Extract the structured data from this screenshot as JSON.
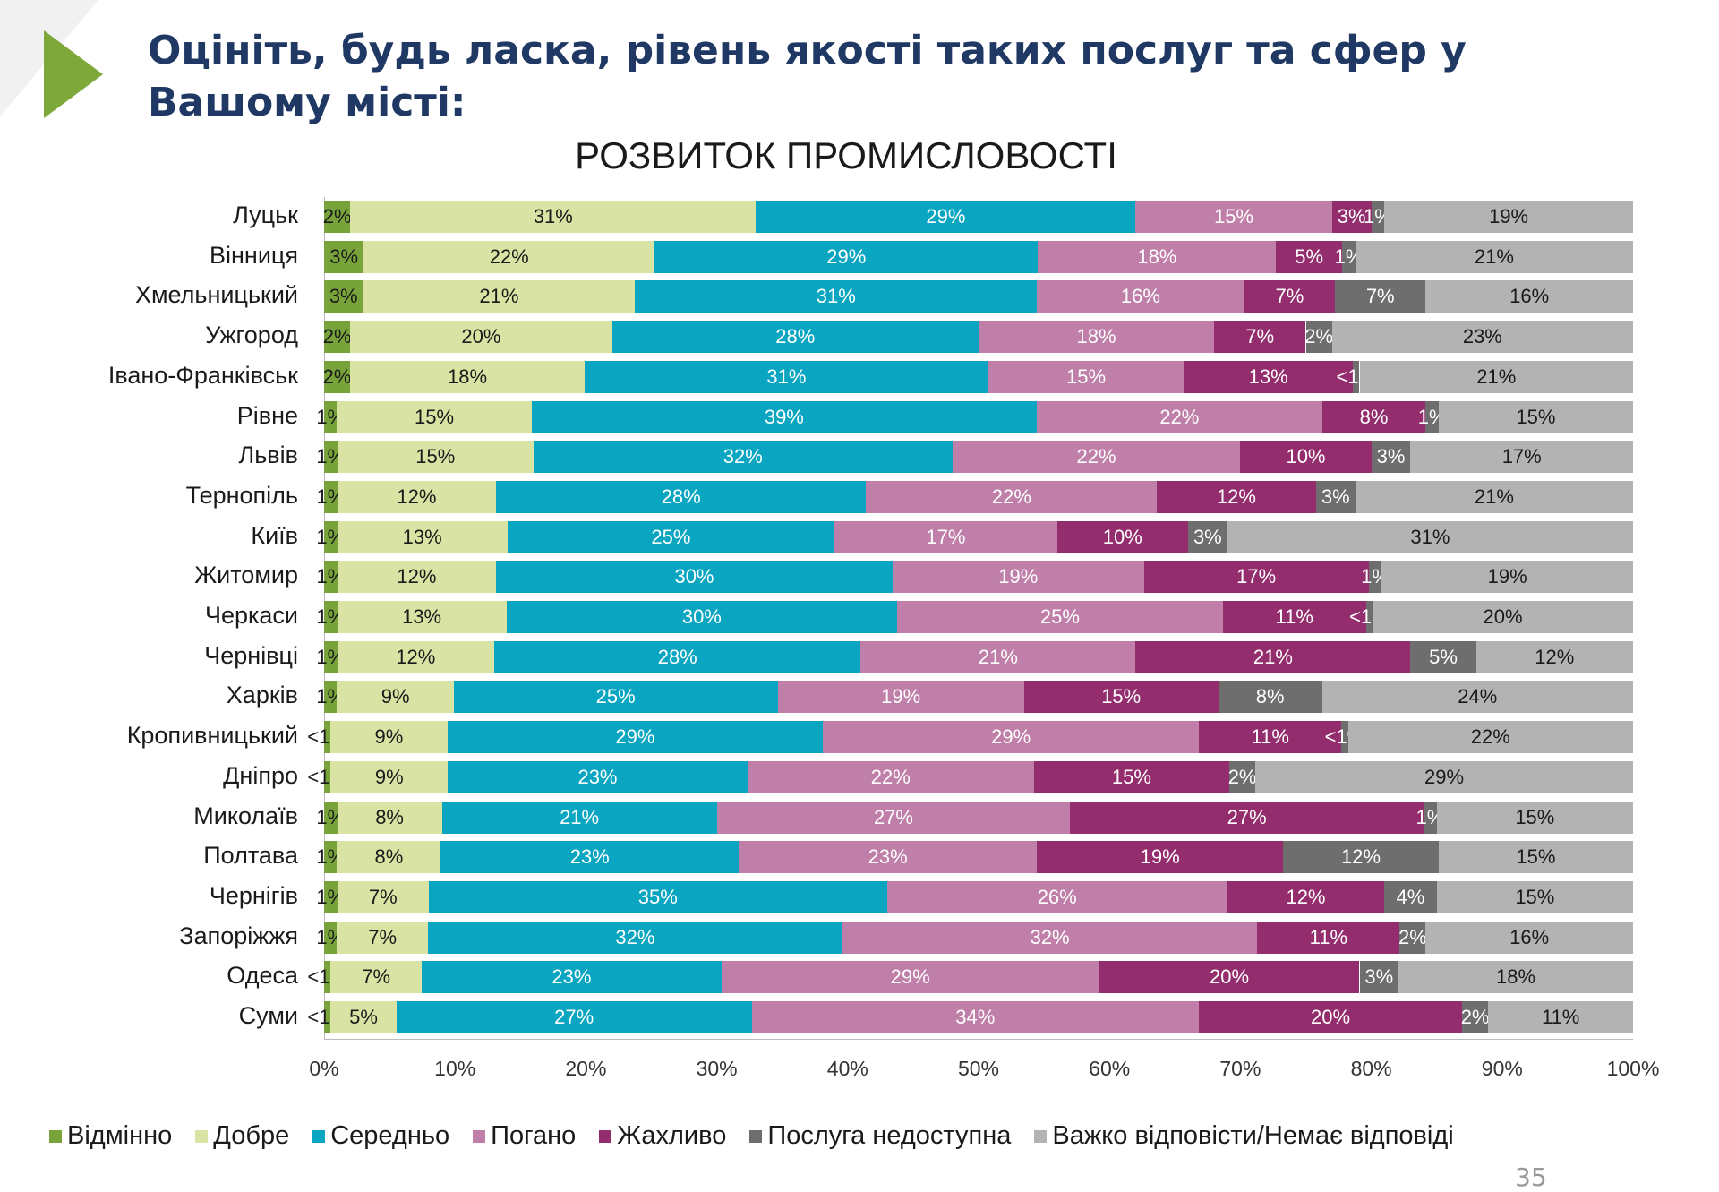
{
  "header": {
    "title": "Оцініть, будь ласка, рівень якості таких послуг та сфер у Вашому місті:",
    "page_number": "35"
  },
  "chart_data": {
    "type": "bar",
    "orientation": "horizontal-stacked-100",
    "title": "РОЗВИТОК ПРОМИСЛОВОСТІ",
    "xlabel": "",
    "ylabel": "",
    "xlim": [
      0,
      100
    ],
    "x_ticks": [
      "0%",
      "10%",
      "20%",
      "30%",
      "40%",
      "50%",
      "60%",
      "70%",
      "80%",
      "90%",
      "100%"
    ],
    "legend_position": "bottom",
    "series_names": [
      "Відмінно",
      "Добре",
      "Середньо",
      "Погано",
      "Жахливо",
      "Послуга недоступна",
      "Важко відповісти/Немає відповіді"
    ],
    "colors": [
      "#77a33a",
      "#d9e4a4",
      "#0aa6c1",
      "#bf7fa8",
      "#942d6d",
      "#6e6e6e",
      "#b3b3b3"
    ],
    "categories": [
      "Луцьк",
      "Вінниця",
      "Хмельницький",
      "Ужгород",
      "Івано-Франківськ",
      "Рівне",
      "Львів",
      "Тернопіль",
      "Київ",
      "Житомир",
      "Черкаси",
      "Чернівці",
      "Харків",
      "Кропивницький",
      "Дніпро",
      "Миколаїв",
      "Полтава",
      "Чернігів",
      "Запоріжжя",
      "Одеса",
      "Суми"
    ],
    "labels": [
      [
        "2%",
        "31%",
        "29%",
        "15%",
        "3%",
        "1%",
        "19%"
      ],
      [
        "3%",
        "22%",
        "29%",
        "18%",
        "5%",
        "1%",
        "21%"
      ],
      [
        "3%",
        "21%",
        "31%",
        "16%",
        "7%",
        "7%",
        "16%"
      ],
      [
        "2%",
        "20%",
        "28%",
        "18%",
        "7%",
        "2%",
        "23%"
      ],
      [
        "2%",
        "18%",
        "31%",
        "15%",
        "13%",
        "<1%",
        "21%"
      ],
      [
        "1%",
        "15%",
        "39%",
        "22%",
        "8%",
        "1%",
        "15%"
      ],
      [
        "1%",
        "15%",
        "32%",
        "22%",
        "10%",
        "3%",
        "17%"
      ],
      [
        "1%",
        "12%",
        "28%",
        "22%",
        "12%",
        "3%",
        "21%"
      ],
      [
        "1%",
        "13%",
        "25%",
        "17%",
        "10%",
        "3%",
        "31%"
      ],
      [
        "1%",
        "12%",
        "30%",
        "19%",
        "17%",
        "1%",
        "19%"
      ],
      [
        "1%",
        "13%",
        "30%",
        "25%",
        "11%",
        "<1%",
        "20%"
      ],
      [
        "1%",
        "12%",
        "28%",
        "21%",
        "21%",
        "5%",
        "12%"
      ],
      [
        "1%",
        "9%",
        "25%",
        "19%",
        "15%",
        "8%",
        "24%"
      ],
      [
        "<1%",
        "9%",
        "29%",
        "29%",
        "11%",
        "<1%",
        "22%"
      ],
      [
        "<1%",
        "9%",
        "23%",
        "22%",
        "15%",
        "2%",
        "29%"
      ],
      [
        "1%",
        "8%",
        "21%",
        "27%",
        "27%",
        "1%",
        "15%"
      ],
      [
        "1%",
        "8%",
        "23%",
        "23%",
        "19%",
        "12%",
        "15%"
      ],
      [
        "1%",
        "7%",
        "35%",
        "26%",
        "12%",
        "4%",
        "15%"
      ],
      [
        "1%",
        "7%",
        "32%",
        "32%",
        "11%",
        "2%",
        "16%"
      ],
      [
        "<1%",
        "7%",
        "23%",
        "29%",
        "20%",
        "3%",
        "18%"
      ],
      [
        "<1%",
        "5%",
        "27%",
        "34%",
        "20%",
        "2%",
        "11%"
      ]
    ]
  }
}
